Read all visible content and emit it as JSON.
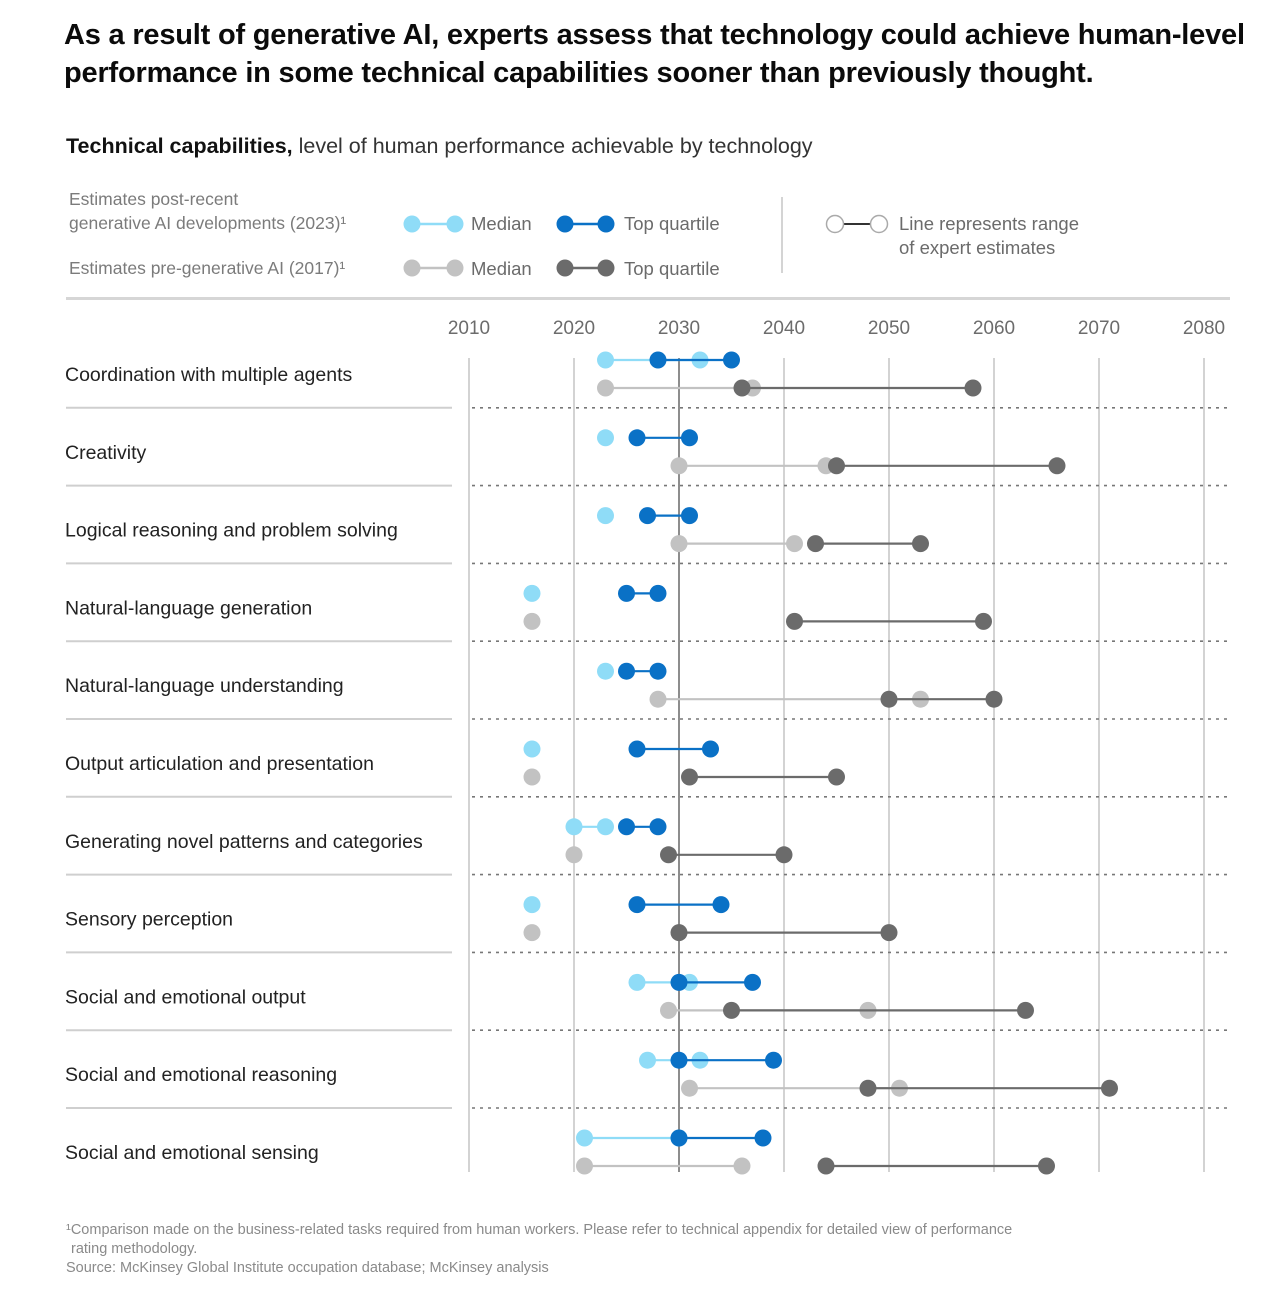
{
  "title": "As a result of generative AI, experts assess that technology could achieve human-level performance in some technical capabilities sooner than previously thought.",
  "subtitle_bold": "Technical capabilities,",
  "subtitle_rest": " level of human performance achievable by technology",
  "legend": {
    "group_2023_line1": "Estimates post-recent",
    "group_2023_line2": "generative AI developments (2023)¹",
    "group_2017": "Estimates pre-generative AI (2017)¹",
    "median_label": "Median",
    "top_quartile_label": "Top quartile",
    "range_line1": "Line represents range",
    "range_line2": "of expert estimates"
  },
  "colors": {
    "median_2023": "#8fdcf7",
    "top_2023": "#0a71c6",
    "median_2017": "#c2c2c2",
    "top_2017": "#6b6b6b"
  },
  "footnote": {
    "note_line1": "¹Comparison made on the business-related tasks required from human workers. Please refer to technical appendix for detailed view of performance",
    "note_line2": "rating methodology.",
    "source": "Source: McKinsey Global Institute occupation database; McKinsey analysis"
  },
  "chart_data": {
    "type": "scatter",
    "x_ticks": [
      2010,
      2020,
      2030,
      2040,
      2050,
      2060,
      2070,
      2080
    ],
    "xlim": [
      2010,
      2080
    ],
    "series": [
      {
        "name": "Median",
        "group": "Estimates post-recent generative AI developments (2023)"
      },
      {
        "name": "Top quartile",
        "group": "Estimates post-recent generative AI developments (2023)"
      },
      {
        "name": "Median",
        "group": "Estimates pre-generative AI (2017)"
      },
      {
        "name": "Top quartile",
        "group": "Estimates pre-generative AI (2017)"
      }
    ],
    "rows": [
      {
        "label": "Coordination with multiple agents",
        "median_2023": [
          2023,
          2032
        ],
        "top_2023": [
          2028,
          2035
        ],
        "median_2017": [
          2023,
          2037
        ],
        "top_2017": [
          2036,
          2058
        ]
      },
      {
        "label": "Creativity",
        "median_2023": [
          2023,
          2023
        ],
        "top_2023": [
          2026,
          2031
        ],
        "median_2017": [
          2030,
          2044
        ],
        "top_2017": [
          2045,
          2066
        ]
      },
      {
        "label": "Logical reasoning and problem solving",
        "median_2023": [
          2023,
          2023
        ],
        "top_2023": [
          2027,
          2031
        ],
        "median_2017": [
          2030,
          2041
        ],
        "top_2017": [
          2043,
          2053
        ]
      },
      {
        "label": "Natural-language generation",
        "median_2023": [
          2016,
          2016
        ],
        "top_2023": [
          2025,
          2028
        ],
        "median_2017": [
          2016,
          2016
        ],
        "top_2017": [
          2041,
          2059
        ]
      },
      {
        "label": "Natural-language understanding",
        "median_2023": [
          2023,
          2023
        ],
        "top_2023": [
          2025,
          2028
        ],
        "median_2017": [
          2028,
          2053
        ],
        "top_2017": [
          2050,
          2060
        ]
      },
      {
        "label": "Output articulation and presentation",
        "median_2023": [
          2016,
          2016
        ],
        "top_2023": [
          2026,
          2033
        ],
        "median_2017": [
          2016,
          2016
        ],
        "top_2017": [
          2031,
          2045
        ]
      },
      {
        "label": "Generating novel patterns and categories",
        "median_2023": [
          2020,
          2023
        ],
        "top_2023": [
          2025,
          2028
        ],
        "median_2017": [
          2020,
          2020
        ],
        "top_2017": [
          2029,
          2040
        ]
      },
      {
        "label": "Sensory perception",
        "median_2023": [
          2016,
          2016
        ],
        "top_2023": [
          2026,
          2034
        ],
        "median_2017": [
          2016,
          2016
        ],
        "top_2017": [
          2030,
          2050
        ]
      },
      {
        "label": "Social and emotional output",
        "median_2023": [
          2026,
          2031
        ],
        "top_2023": [
          2030,
          2037
        ],
        "median_2017": [
          2029,
          2048
        ],
        "top_2017": [
          2035,
          2063
        ]
      },
      {
        "label": "Social and emotional reasoning",
        "median_2023": [
          2027,
          2032
        ],
        "top_2023": [
          2030,
          2039
        ],
        "median_2017": [
          2031,
          2051
        ],
        "top_2017": [
          2048,
          2071
        ]
      },
      {
        "label": "Social and emotional sensing",
        "median_2023": [
          2021,
          2030
        ],
        "top_2023": [
          2030,
          2038
        ],
        "median_2017": [
          2021,
          2036
        ],
        "top_2017": [
          2044,
          2065
        ]
      }
    ]
  }
}
